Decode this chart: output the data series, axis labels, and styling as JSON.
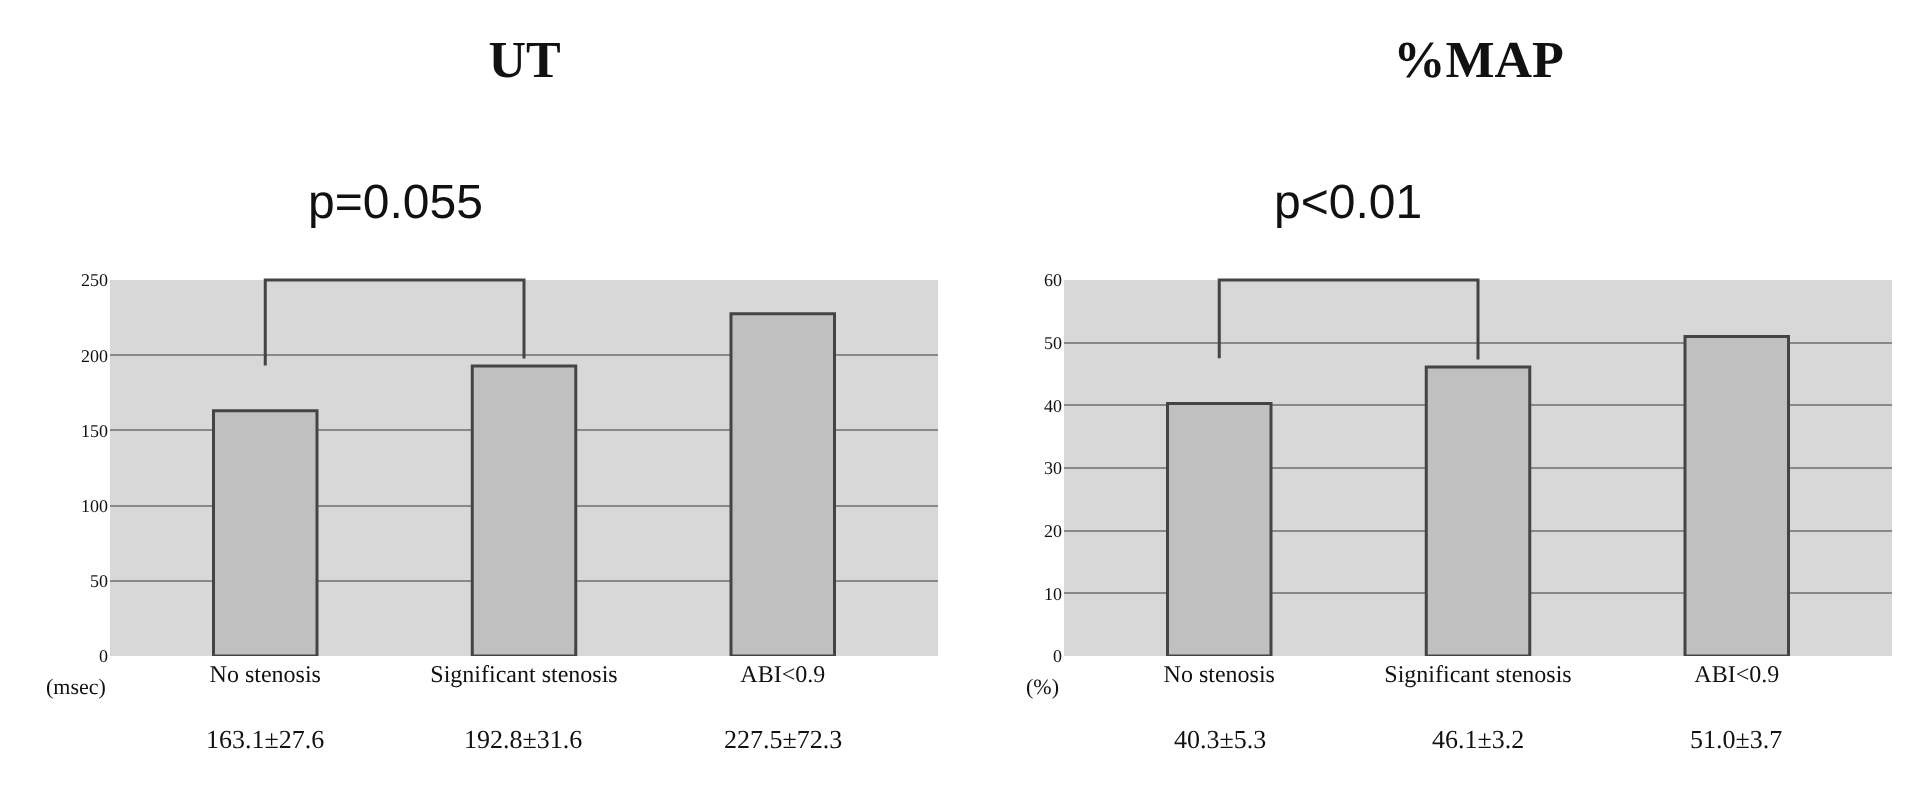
{
  "chart_data": [
    {
      "type": "bar",
      "title": "UT",
      "ylabel": "(msec)",
      "categories": [
        "No stenosis",
        "Significant stenosis",
        "ABI<0.9"
      ],
      "values": [
        163.1,
        192.8,
        227.5
      ],
      "value_labels": [
        "163.1±27.6",
        "192.8±31.6",
        "227.5±72.3"
      ],
      "color": "#c0c0c0",
      "ylim": [
        0,
        250
      ],
      "yticks": [
        0,
        50,
        100,
        150,
        200,
        250
      ],
      "grid": "y",
      "annotations": [
        "p=0.055"
      ],
      "legend": false
    },
    {
      "type": "bar",
      "title": "%MAP",
      "ylabel": "(%)",
      "categories": [
        "No stenosis",
        "Significant stenosis",
        "ABI<0.9"
      ],
      "values": [
        40.3,
        46.1,
        51.0
      ],
      "value_labels": [
        "40.3±5.3",
        "46.1±3.2",
        "51.0±3.7"
      ],
      "color": "#c0c0c0",
      "ylim": [
        0,
        60
      ],
      "yticks": [
        0,
        10,
        20,
        30,
        40,
        50,
        60
      ],
      "grid": "y",
      "annotations": [
        "p<0.01"
      ],
      "legend": false
    }
  ]
}
